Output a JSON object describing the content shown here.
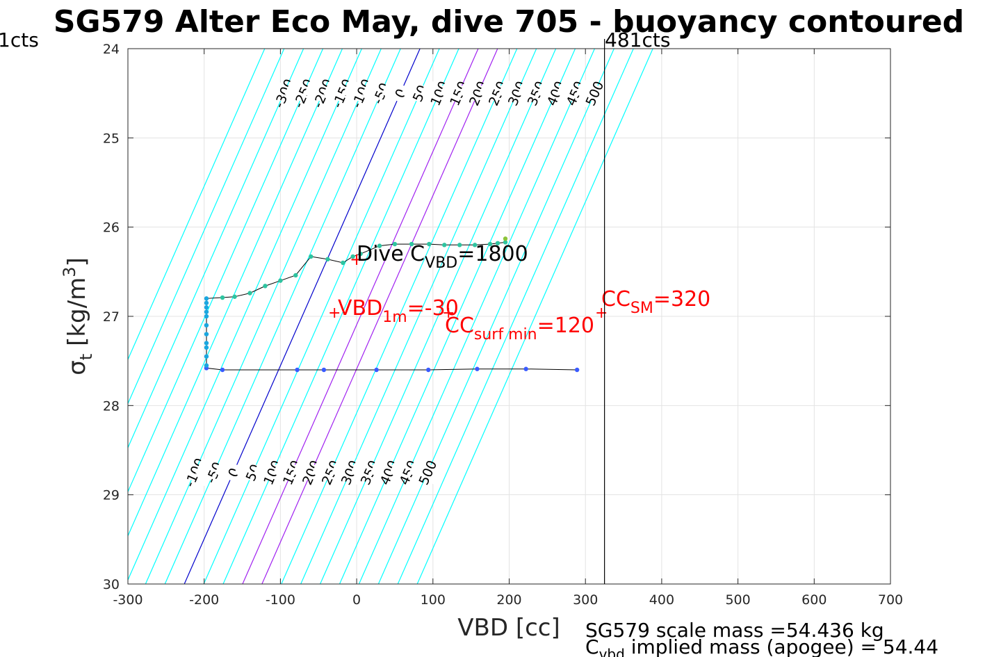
{
  "chart_data": {
    "type": "scatter",
    "title": "SG579 Alter Eco May, dive 705 - buoyancy contoured",
    "xlabel": "VBD [cc]",
    "ylabel_main": "σ",
    "ylabel_sub": "t",
    "ylabel_unit": " [kg/m",
    "ylabel_sup": "3",
    "ylabel_close": "]",
    "xlim": [
      -300,
      700
    ],
    "ylim": [
      24,
      30
    ],
    "y_reversed": true,
    "grid": true,
    "x_ticks": [
      -300,
      -200,
      -100,
      0,
      100,
      200,
      300,
      400,
      500,
      600,
      700
    ],
    "x_tick_labels": [
      "-300",
      "-200",
      "-100",
      "0",
      "100",
      "200",
      "300",
      "400",
      "500",
      "600",
      "700"
    ],
    "y_ticks": [
      24,
      25,
      26,
      27,
      28,
      29,
      30
    ],
    "y_tick_labels": [
      "24",
      "25",
      "26",
      "27",
      "28",
      "29",
      "30"
    ],
    "buoyancy_contours": {
      "levels": [
        -400,
        -350,
        -300,
        -250,
        -200,
        -150,
        -100,
        -50,
        0,
        50,
        100,
        150,
        200,
        250,
        300,
        350,
        400,
        450,
        500,
        550,
        600
      ],
      "vbd_at_sigma": {
        "sigma_top": 24,
        "vbd_top": 83,
        "sigma_bottom": 30,
        "vbd_bottom": -226
      },
      "spacing_ratio": 0.509,
      "upper_labels": [
        "-300",
        "-250",
        "-200",
        "-150",
        "-100",
        "-50",
        "0",
        "50",
        "100",
        "150",
        "200",
        "250",
        "300",
        "350",
        "400",
        "450",
        "500"
      ],
      "upper_label_levels": [
        -300,
        -250,
        -200,
        -150,
        -100,
        -50,
        0,
        50,
        100,
        150,
        200,
        250,
        300,
        350,
        400,
        450,
        500
      ],
      "upper_label_sigma": 24.5,
      "lower_labels": [
        "-100",
        "-50",
        "0",
        "50",
        "100",
        "150",
        "200",
        "250",
        "300",
        "350",
        "400",
        "450",
        "500"
      ],
      "lower_label_levels": [
        -100,
        -50,
        0,
        50,
        100,
        150,
        200,
        250,
        300,
        350,
        400,
        450,
        500
      ],
      "lower_label_sigma": 28.75,
      "colors": {
        "default": "#00ffff",
        "zero": "#0000cc",
        "highlight": "#a020f0"
      },
      "highlight_levels": [
        150,
        200
      ]
    },
    "markers": {
      "min_cts_label": "1cts",
      "max_cts_label": "481cts",
      "max_cts_vbd": 325
    },
    "series": [
      {
        "name": "",
        "points": [
          [
            289,
            27.6
          ],
          [
            222,
            27.59
          ],
          [
            158,
            27.59
          ],
          [
            94,
            27.6
          ],
          [
            26,
            27.6
          ],
          [
            -43,
            27.6
          ],
          [
            -78,
            27.6
          ],
          [
            -176,
            27.6
          ],
          [
            -197,
            27.58
          ],
          [
            -197,
            27.55
          ],
          [
            -197,
            27.45
          ],
          [
            -197,
            27.35
          ],
          [
            -197,
            27.3
          ],
          [
            -197,
            27.2
          ],
          [
            -197,
            27.1
          ],
          [
            -197,
            27.0
          ],
          [
            -197,
            26.95
          ],
          [
            -197,
            26.9
          ],
          [
            -197,
            26.85
          ],
          [
            -197,
            26.8
          ],
          [
            -176,
            26.79
          ],
          [
            -160,
            26.78
          ],
          [
            -140,
            26.74
          ],
          [
            -120,
            26.66
          ],
          [
            -100,
            26.6
          ],
          [
            -80,
            26.54
          ],
          [
            -60,
            26.33
          ],
          [
            -38,
            26.36
          ],
          [
            -18,
            26.4
          ],
          [
            -5,
            26.33
          ],
          [
            5,
            26.3
          ],
          [
            30,
            26.21
          ],
          [
            50,
            26.19
          ],
          [
            72,
            26.19
          ],
          [
            95,
            26.19
          ],
          [
            115,
            26.2
          ],
          [
            135,
            26.2
          ],
          [
            155,
            26.2
          ],
          [
            175,
            26.19
          ],
          [
            185,
            26.18
          ],
          [
            195,
            26.17
          ],
          [
            195,
            26.13
          ]
        ],
        "colors": {
          "deep": "#3a5bff",
          "mid": "#1aa7e0",
          "upper": "#2ec4a0",
          "top": "#8cc43a"
        }
      }
    ],
    "annotations": [
      {
        "id": "dive_cvbd",
        "base": "Dive C",
        "sub": "VBD",
        "rest": "=1800",
        "color": "#000000",
        "x": 0,
        "y": 26.37
      },
      {
        "id": "vbd_1m",
        "base": "VBD",
        "sub": "1m",
        "rest": "=-30",
        "color": "#ff0000",
        "x": -30,
        "y": 26.95
      },
      {
        "id": "cc_surf_min",
        "base": "CC",
        "sub": "surf min",
        "rest": "=120",
        "color": "#ff0000",
        "x": 120,
        "y": 26.95
      },
      {
        "id": "cc_sm",
        "base": "CC",
        "sub": "SM",
        "rest": "=320",
        "color": "#ff0000",
        "x": 320,
        "y": 26.95
      }
    ],
    "footnotes": {
      "scale_mass": "SG579 scale mass =54.436 kg",
      "implied_base": "C",
      "implied_sub": "vbd",
      "implied_rest": " implied mass (apogee) = 54.44"
    }
  }
}
